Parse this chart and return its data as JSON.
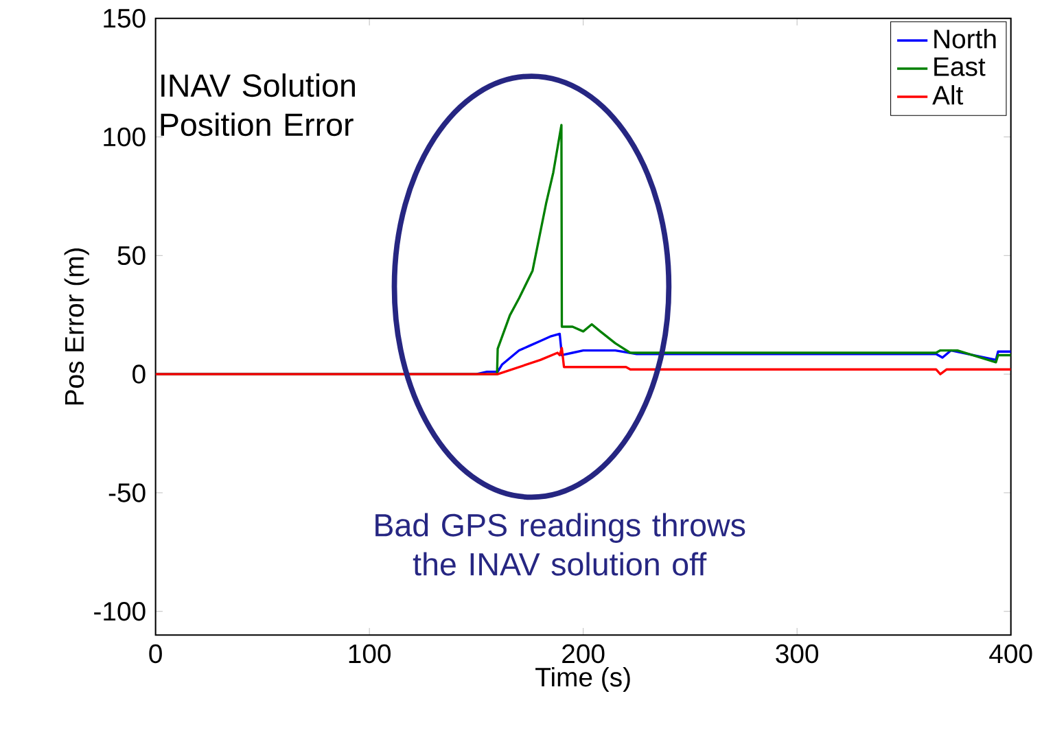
{
  "chart_data": {
    "type": "line",
    "title": "INAV Solution Position Error",
    "xlabel": "Time (s)",
    "ylabel": "Pos Error (m)",
    "xlim": [
      0,
      400
    ],
    "ylim": [
      -110,
      150
    ],
    "xticks": [
      0,
      100,
      200,
      300,
      400
    ],
    "yticks": [
      -100,
      -50,
      0,
      50,
      100,
      150
    ],
    "legend": "top right",
    "grid": false,
    "marker": "none",
    "line_style": "solid",
    "annotations": [
      "Bad GPS readings throws the INAV solution off"
    ],
    "series": [
      {
        "name": "North",
        "color": "#0000ff",
        "x": [
          0,
          150,
          155,
          160,
          162,
          166,
          170,
          175,
          180,
          185,
          189,
          190,
          195,
          200,
          215,
          225,
          365,
          368,
          372,
          393,
          394,
          400
        ],
        "values": [
          0,
          0,
          1,
          1,
          4,
          7,
          10,
          12,
          14,
          16,
          17,
          8,
          9,
          10,
          10,
          8.5,
          8.5,
          7,
          10,
          6,
          9.5,
          9.5
        ]
      },
      {
        "name": "East",
        "color": "#008000",
        "x": [
          0,
          159.7,
          160,
          165.7,
          170,
          176.3,
          182.6,
          186,
          189.8,
          190,
          195,
          200,
          204,
          208,
          215,
          222,
          365,
          367,
          375,
          393,
          394,
          400
        ],
        "values": [
          0,
          0,
          10.7,
          24.8,
          32,
          43.6,
          71.8,
          85,
          105,
          20,
          20,
          18,
          21,
          18,
          13,
          9,
          9,
          10,
          10,
          5,
          8,
          8
        ]
      },
      {
        "name": "Alt",
        "color": "#ff0000",
        "x": [
          0,
          160,
          170,
          180,
          188,
          189,
          190,
          191,
          220,
          222,
          365,
          367,
          370,
          400
        ],
        "values": [
          0,
          0,
          3,
          6,
          9,
          8,
          11,
          3,
          3,
          2,
          2,
          0,
          2,
          2
        ]
      }
    ]
  }
}
